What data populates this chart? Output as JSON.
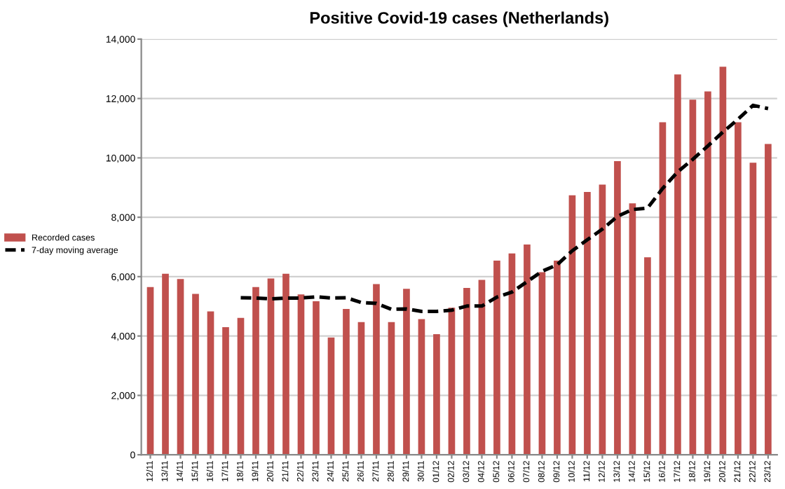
{
  "chart_data": {
    "type": "bar",
    "title": "Positive Covid-19 cases (Netherlands)",
    "categories": [
      "12/11",
      "13/11",
      "14/11",
      "15/11",
      "16/11",
      "17/11",
      "18/11",
      "19/11",
      "20/11",
      "21/11",
      "22/11",
      "23/11",
      "24/11",
      "25/11",
      "26/11",
      "27/11",
      "28/11",
      "29/11",
      "30/11",
      "01/12",
      "02/12",
      "03/12",
      "04/12",
      "05/12",
      "06/12",
      "07/12",
      "08/12",
      "09/12",
      "10/12",
      "11/12",
      "12/12",
      "13/12",
      "14/12",
      "15/12",
      "16/12",
      "17/12",
      "18/12",
      "19/12",
      "20/12",
      "21/12",
      "22/12",
      "23/12"
    ],
    "series": [
      {
        "name": "Recorded cases",
        "color": "#c0504d",
        "values": [
          5650,
          6100,
          5920,
          5420,
          4830,
          4300,
          4610,
          5650,
          5940,
          6100,
          5400,
          5170,
          3950,
          4910,
          4470,
          5750,
          4470,
          5590,
          4570,
          4060,
          4950,
          5620,
          5890,
          6540,
          6780,
          7080,
          6150,
          6540,
          8740,
          8850,
          9100,
          9890,
          8470,
          6650,
          11200,
          12810,
          11960,
          12240,
          13070,
          11200,
          9840,
          10470
        ]
      },
      {
        "name": "7-day moving average",
        "type": "line",
        "color": "#000000",
        "line_style": "dashed",
        "values": [
          null,
          null,
          null,
          null,
          null,
          null,
          5290,
          5280,
          5250,
          5280,
          5280,
          5320,
          5280,
          5290,
          5130,
          5100,
          4900,
          4910,
          4830,
          4830,
          4870,
          5010,
          5010,
          5310,
          5480,
          5830,
          6180,
          6400,
          6870,
          7240,
          7600,
          8030,
          8260,
          8310,
          8970,
          9530,
          9950,
          10400,
          10870,
          11300,
          11770,
          11660
        ]
      }
    ],
    "ylim": [
      0,
      14000
    ],
    "yticks": [
      {
        "value": 0,
        "label": "0"
      },
      {
        "value": 2000,
        "label": "2,000"
      },
      {
        "value": 4000,
        "label": "4,000"
      },
      {
        "value": 6000,
        "label": "6,000"
      },
      {
        "value": 8000,
        "label": "8,000"
      },
      {
        "value": 10000,
        "label": "10,000"
      },
      {
        "value": 12000,
        "label": "12,000"
      },
      {
        "value": 14000,
        "label": "14,000"
      }
    ],
    "grid": "y",
    "legend": "left"
  }
}
